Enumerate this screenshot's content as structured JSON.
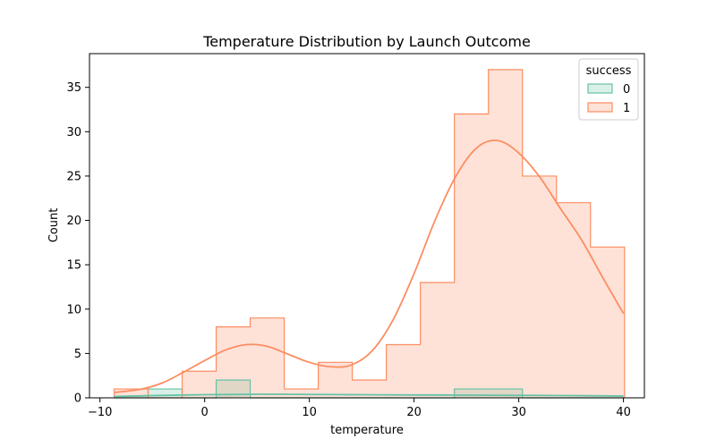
{
  "chart_data": {
    "type": "histogram",
    "title": "Temperature Distribution by Launch Outcome",
    "xlabel": "temperature",
    "ylabel": "Count",
    "xlim": [
      -11,
      42
    ],
    "ylim": [
      0,
      38.8
    ],
    "xticks": [
      -10,
      0,
      10,
      20,
      30,
      40
    ],
    "yticks": [
      0,
      5,
      10,
      15,
      20,
      25,
      30,
      35
    ],
    "grid": false,
    "bin_edges": [
      -8.65,
      -5.4,
      -2.15,
      1.1,
      4.35,
      7.6,
      10.85,
      14.1,
      17.35,
      20.6,
      23.85,
      27.1,
      30.35,
      33.6,
      36.85,
      40.1
    ],
    "legend": {
      "title": "success",
      "placement": "top-right",
      "entries": [
        "0",
        "1"
      ]
    },
    "series": [
      {
        "name": "0",
        "color": "#66c2a5",
        "values": [
          0,
          1,
          0,
          2,
          0,
          0,
          0,
          0,
          0,
          0,
          1,
          1,
          0,
          0,
          0
        ],
        "kde": {
          "x": [
            -8.65,
            -5,
            0,
            5,
            10,
            15,
            20,
            25,
            30,
            35,
            40
          ],
          "y": [
            0.15,
            0.25,
            0.35,
            0.4,
            0.38,
            0.35,
            0.32,
            0.3,
            0.28,
            0.25,
            0.2
          ]
        }
      },
      {
        "name": "1",
        "color": "#fc8d62",
        "values": [
          1,
          0,
          3,
          8,
          9,
          1,
          4,
          2,
          6,
          13,
          32,
          37,
          25,
          22,
          17
        ],
        "kde": {
          "x": [
            -8.65,
            -6,
            -4,
            -2,
            0,
            2,
            4,
            6,
            8,
            10,
            12,
            14,
            16,
            18,
            20,
            22,
            24,
            26,
            28,
            30,
            32,
            34,
            36,
            38,
            40
          ],
          "y": [
            0.6,
            1.0,
            1.7,
            2.9,
            4.2,
            5.4,
            6.0,
            5.8,
            4.9,
            4.0,
            3.5,
            3.7,
            5.3,
            8.8,
            14.0,
            20.0,
            25.0,
            28.2,
            29.0,
            27.6,
            24.9,
            21.3,
            17.8,
            13.6,
            9.5
          ]
        }
      }
    ]
  }
}
